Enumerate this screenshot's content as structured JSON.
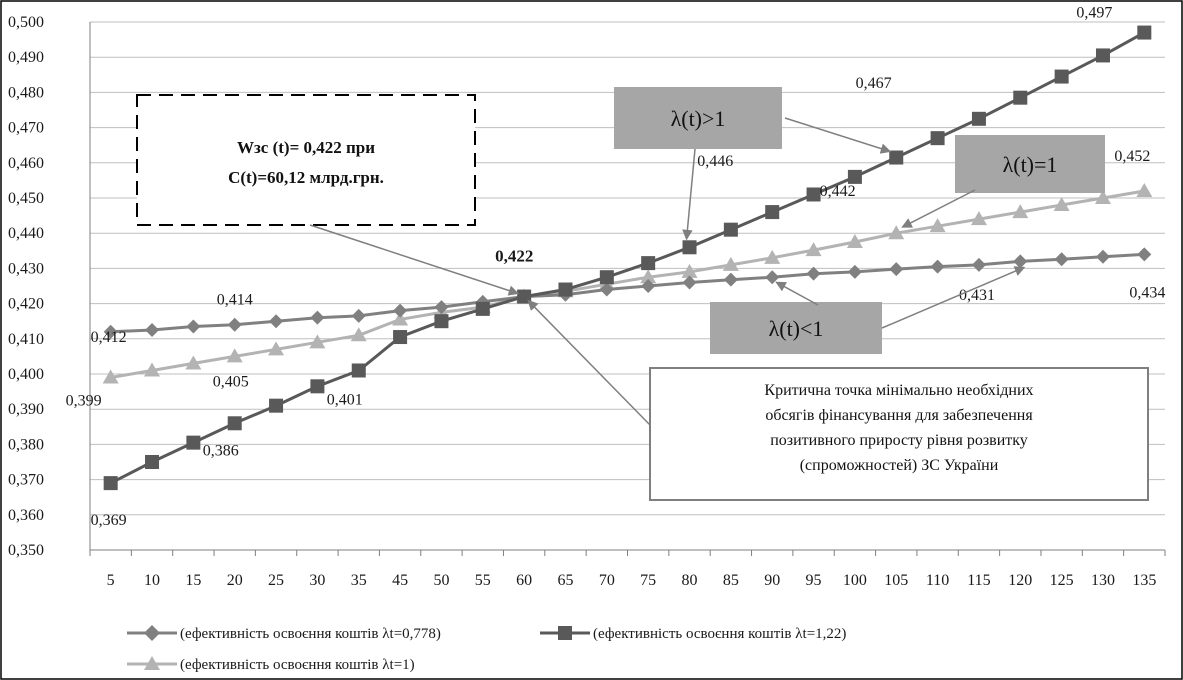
{
  "chart_data": {
    "type": "line",
    "x": [
      5,
      10,
      15,
      20,
      25,
      30,
      35,
      45,
      50,
      55,
      60,
      65,
      70,
      75,
      80,
      85,
      90,
      95,
      100,
      105,
      110,
      115,
      120,
      125,
      130,
      135
    ],
    "x_tick_labels": [
      "5",
      "10",
      "15",
      "20",
      "25",
      "30",
      "35",
      "45",
      "50",
      "55",
      "60",
      "65",
      "70",
      "75",
      "80",
      "85",
      "90",
      "95",
      "100",
      "105",
      "110",
      "115",
      "120",
      "125",
      "130",
      "135"
    ],
    "ylim": [
      0.35,
      0.5
    ],
    "y_tick_labels": [
      "0,350",
      "0,360",
      "0,370",
      "0,380",
      "0,390",
      "0,400",
      "0,410",
      "0,420",
      "0,430",
      "0,440",
      "0,450",
      "0,460",
      "0,470",
      "0,480",
      "0,490",
      "0,500"
    ],
    "grid": true,
    "legend_position": "bottom",
    "series": [
      {
        "name": "(ефективність освоєння коштів λt=0,778)",
        "marker": "diamond",
        "color": "#808080",
        "values": [
          0.412,
          0.4125,
          0.4135,
          0.414,
          0.415,
          0.416,
          0.4165,
          0.418,
          0.419,
          0.4205,
          0.422,
          0.4225,
          0.424,
          0.425,
          0.426,
          0.4268,
          0.4275,
          0.4285,
          0.429,
          0.4298,
          0.4305,
          0.431,
          0.432,
          0.4326,
          0.4333,
          0.434
        ]
      },
      {
        "name": "(ефективність освоєння коштів λt=1,22)",
        "marker": "square",
        "color": "#595959",
        "values": [
          0.369,
          0.375,
          0.3805,
          0.386,
          0.391,
          0.3965,
          0.401,
          0.4105,
          0.415,
          0.4185,
          0.422,
          0.424,
          0.4275,
          0.4315,
          0.436,
          0.441,
          0.446,
          0.451,
          0.456,
          0.4615,
          0.467,
          0.4725,
          0.4785,
          0.4845,
          0.4905,
          0.497
        ]
      },
      {
        "name": "(ефективність освоєння коштів λt=1)",
        "marker": "triangle",
        "color": "#b3b3b3",
        "values": [
          0.399,
          0.401,
          0.403,
          0.405,
          0.407,
          0.409,
          0.411,
          0.4155,
          0.4175,
          0.419,
          0.422,
          0.4235,
          0.4255,
          0.4275,
          0.429,
          0.431,
          0.433,
          0.4352,
          0.4375,
          0.44,
          0.442,
          0.444,
          0.446,
          0.448,
          0.45,
          0.452
        ]
      }
    ],
    "data_labels": [
      {
        "series": 0,
        "x": 5,
        "text": "0,412"
      },
      {
        "series": 0,
        "x": 20,
        "text": "0,414"
      },
      {
        "series": 0,
        "x": 115,
        "text": "0,431"
      },
      {
        "series": 0,
        "x": 135,
        "text": "0,434"
      },
      {
        "series": 1,
        "x": 5,
        "text": "0,369"
      },
      {
        "series": 1,
        "x": 20,
        "text": "0,386"
      },
      {
        "series": 1,
        "x": 35,
        "text": "0,401"
      },
      {
        "series": 1,
        "x": 90,
        "text": "0,446"
      },
      {
        "series": 1,
        "x": 110,
        "text": "0,467"
      },
      {
        "series": 1,
        "x": 135,
        "text": "0,497"
      },
      {
        "series": 2,
        "x": 5,
        "text": "0,399"
      },
      {
        "series": 2,
        "x": 20,
        "text": "0,405"
      },
      {
        "series": 2,
        "x": 110,
        "text": "0,442"
      },
      {
        "series": 2,
        "x": 135,
        "text": "0,452"
      }
    ],
    "intersection_label": "0,422",
    "annotations": {
      "formula_line1": "Wзс (t)= 0,422 при",
      "formula_line2": "C(t)=60,12 млрд.грн.",
      "lambda_gt": "λ(t)>1",
      "lambda_eq": "λ(t)=1",
      "lambda_lt": "λ(t)<1",
      "critical_point_lines": [
        "Критична точка мінімально необхідних",
        "обсягів фінансування для забезпечення",
        "позитивного приросту рівня розвитку",
        "(спроможностей) ЗС України"
      ]
    }
  }
}
